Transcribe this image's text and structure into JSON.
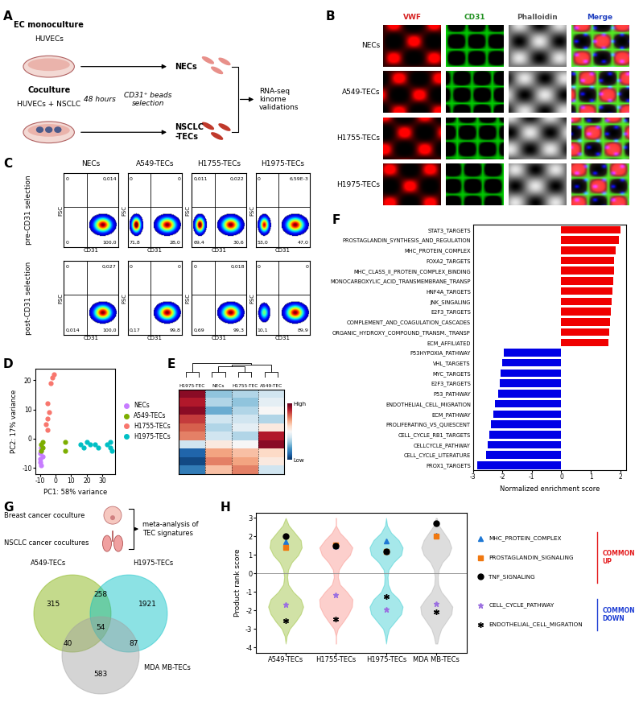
{
  "panel_A": {
    "label": "A",
    "monoculture_title": "EC monoculture",
    "monoculture_cells": "HUVECs",
    "time": "48 hours",
    "selection": "CD31⁺ beads\nselection",
    "mono_output": "NECs",
    "coculture_title": "Coculture",
    "coculture_cells": "HUVECs + NSCLC",
    "co_output": "NSCLC\n-TECs",
    "downstream": "RNA-seq\nkinome\nvalidations"
  },
  "panel_B": {
    "label": "B",
    "stains": [
      "VWF",
      "CD31",
      "Phalloidin",
      "Merge"
    ],
    "conditions": [
      "NECs",
      "A549-TECs",
      "H1755-TECs",
      "H1975-TECs"
    ]
  },
  "panel_C": {
    "label": "C",
    "x_label": "CD31",
    "y_label": "FSC",
    "conditions": [
      "NECs",
      "A549-TECs",
      "H1755-TECs",
      "H1975-TECs"
    ],
    "rows": [
      {
        "name": "pre-CD31 selection",
        "quadrants": [
          {
            "UL": "0",
            "UR": "0,014",
            "LL": "0",
            "LR": "100,0"
          },
          {
            "UL": "0",
            "UR": "0",
            "LL": "71,8",
            "LR": "28,0"
          },
          {
            "UL": "0,011",
            "UR": "0,022",
            "LL": "69,4",
            "LR": "30,6"
          },
          {
            "UL": "0",
            "UR": "6,59E-3",
            "LL": "53,0",
            "LR": "47,0"
          }
        ]
      },
      {
        "name": "post-CD31 selection",
        "quadrants": [
          {
            "UL": "0",
            "UR": "0,027",
            "LL": "0,014",
            "LR": "100,0"
          },
          {
            "UL": "0",
            "UR": "0",
            "LL": "0,17",
            "LR": "99,8"
          },
          {
            "UL": "0",
            "UR": "0,018",
            "LL": "0,69",
            "LR": "99,3"
          },
          {
            "UL": "0",
            "UR": "0",
            "LL": "10,1",
            "LR": "89,9"
          }
        ]
      }
    ]
  },
  "panel_G": {
    "label": "G",
    "sources": [
      "Breast cancer coculture",
      "NSCLC cancer cocultures"
    ],
    "analysis": "meta-analysis of\nTEC signatures",
    "sets": [
      {
        "name": "A549-TECs",
        "color": "#7cae00"
      },
      {
        "name": "H1975-TECs",
        "color": "#00bfc4"
      },
      {
        "name": "MDA MB-TECs",
        "color": "#a0a0a0"
      }
    ],
    "regions": [
      {
        "members": [
          "A549-TECs"
        ],
        "value": 315
      },
      {
        "members": [
          "H1975-TECs"
        ],
        "value": 1921
      },
      {
        "members": [
          "MDA MB-TECs"
        ],
        "value": 583
      },
      {
        "members": [
          "A549-TECs",
          "H1975-TECs"
        ],
        "value": 258
      },
      {
        "members": [
          "A549-TECs",
          "MDA MB-TECs"
        ],
        "value": 40
      },
      {
        "members": [
          "H1975-TECs",
          "MDA MB-TECs"
        ],
        "value": 87
      },
      {
        "members": [
          "A549-TECs",
          "H1975-TECs",
          "MDA MB-TECs"
        ],
        "value": 54
      }
    ]
  },
  "chart_data": [
    {
      "type": "scatter",
      "label": "D",
      "x_label": "PC1: 58% variance",
      "y_label": "PC2: 17% variance",
      "xlim": [
        -13,
        38
      ],
      "ylim": [
        -12,
        24
      ],
      "xticks": [
        -10,
        0,
        10,
        20,
        30
      ],
      "yticks": [
        -10,
        0,
        10,
        20
      ],
      "legend": "right",
      "series": [
        {
          "name": "NECs",
          "color": "#c77cff",
          "x": [
            -10,
            -9,
            -10,
            -9,
            -10,
            -8,
            -9
          ],
          "y": [
            -5,
            -3,
            -8,
            -9,
            -7,
            -6,
            -4
          ]
        },
        {
          "name": "A549-TECs",
          "color": "#7cae00",
          "x": [
            -9,
            -8,
            -9,
            -8,
            6,
            6
          ],
          "y": [
            -2,
            -3,
            -4,
            -1,
            -1,
            -4
          ]
        },
        {
          "name": "H1755-TECs",
          "color": "#f8766d",
          "x": [
            -5,
            -4,
            -5,
            -6,
            -5,
            -3,
            -2,
            -1
          ],
          "y": [
            7,
            9,
            12,
            5,
            3,
            19,
            21,
            22
          ]
        },
        {
          "name": "H1975-TECs",
          "color": "#00bfc4",
          "x": [
            16,
            18,
            20,
            22,
            25,
            27,
            33,
            35,
            36,
            35
          ],
          "y": [
            -2,
            -3,
            -1,
            -2,
            -2,
            -3,
            -2,
            -3,
            -4,
            -1
          ]
        }
      ]
    },
    {
      "type": "heatmap",
      "label": "E",
      "columns": [
        "H1975-TEC",
        "NECs",
        "H1755-TEC",
        "A549-TEC"
      ],
      "cells": [
        [
          0.9,
          -0.4,
          -0.3,
          -0.2
        ],
        [
          0.8,
          -0.3,
          -0.4,
          -0.1
        ],
        [
          0.9,
          -0.5,
          -0.3,
          0.0
        ],
        [
          0.7,
          -0.2,
          -0.2,
          -0.3
        ],
        [
          0.6,
          -0.3,
          -0.1,
          0.1
        ],
        [
          0.5,
          -0.2,
          -0.3,
          0.8
        ],
        [
          -0.2,
          0.1,
          0.0,
          0.9
        ],
        [
          -0.8,
          0.4,
          0.3,
          0.2
        ],
        [
          -0.9,
          0.5,
          0.4,
          0.1
        ],
        [
          -0.7,
          0.3,
          0.5,
          -0.2
        ]
      ],
      "colorbar_range": [
        -1,
        1
      ],
      "colorbar_ticks": [
        {
          "value": 1,
          "label": "High"
        },
        {
          "value": -1,
          "label": "Low"
        }
      ]
    },
    {
      "type": "bar",
      "label": "F",
      "orientation": "horizontal",
      "x_label": "Normalized enrichment score",
      "categories": [
        "STAT3_TARGETS",
        "PROSTAGLANDIN_SYNTHESIS_AND_REGULATION",
        "MHC_PROTEIN_COMPLEX",
        "FOXA2_TARGETS",
        "MHC_CLASS_II_PROTEIN_COMPLEX_BINDING",
        "MONOCARBOXYLIC_ACID_TRANSMEMBRANE_TRANSP",
        "HNF4A_TARGETS",
        "JNK_SINGALING",
        "E2F3_TARGETS",
        "COMPLEMENT_AND_COAGULATION_CASCADES",
        "ORGANIC_HYDROXY_COMPOUND_TRANSM._TRANSP",
        "ECM_AFFILIATED",
        "P53HYPOXIA_PATHWAY",
        "VHL_TARGETS",
        "MYC_TARGETS",
        "E2F3_TARGETS",
        "P53_PATHWAY",
        "ENDOTHELIAL_CELL_MIGRATION",
        "ECM_PATHWAY",
        "PROLIFERATING_VS_QUIESCENT",
        "CELL_CYCLE_RB1_TARGETS",
        "CELLCYCLE_PATHWAY",
        "CELL_CYCLE_LITERATURE",
        "PROX1_TARGETS"
      ],
      "values": [
        2.0,
        1.95,
        1.85,
        1.8,
        1.78,
        1.75,
        1.72,
        1.7,
        1.68,
        1.65,
        1.62,
        1.6,
        -1.95,
        -2.0,
        -2.05,
        -2.1,
        -2.15,
        -2.25,
        -2.3,
        -2.4,
        -2.45,
        -2.5,
        -2.55,
        -2.85
      ],
      "colors": [
        "#f00000",
        "#f00000",
        "#f00000",
        "#f00000",
        "#f00000",
        "#f00000",
        "#f00000",
        "#f00000",
        "#f00000",
        "#f00000",
        "#f00000",
        "#f00000",
        "#0000e6",
        "#0000e6",
        "#0000e6",
        "#0000e6",
        "#0000e6",
        "#0000e6",
        "#0000e6",
        "#0000e6",
        "#0000e6",
        "#0000e6",
        "#0000e6",
        "#0000e6"
      ],
      "xlim": [
        -3,
        2.2
      ],
      "xticks": [
        -3,
        -2,
        -1,
        0,
        1,
        2
      ]
    },
    {
      "type": "violin",
      "label": "H",
      "y_label": "Product rank score",
      "categories": [
        "A549-TECs",
        "H1755-TECs",
        "H1975-TECs",
        "MDA MB-TECs"
      ],
      "colors": [
        "#7cae00",
        "#f8766d",
        "#00bfc4",
        "#a0a0a0"
      ],
      "ylim": [
        -4.3,
        3.3
      ],
      "yticks": [
        3,
        2,
        1,
        0,
        -1,
        -2,
        -3,
        -4
      ],
      "violin_y": [
        -3.8,
        -3.4,
        -3.0,
        -2.6,
        -2.2,
        -1.8,
        -1.4,
        -1.0,
        -0.6,
        -0.2,
        0.2,
        0.6,
        1.0,
        1.4,
        1.8,
        2.2,
        2.6,
        3.0
      ],
      "density": [
        [
          0,
          0.02,
          0.08,
          0.2,
          0.3,
          0.35,
          0.3,
          0.15,
          0.05,
          0.03,
          0.05,
          0.12,
          0.25,
          0.32,
          0.3,
          0.18,
          0.06,
          0
        ],
        [
          0,
          0,
          0.04,
          0.15,
          0.25,
          0.32,
          0.33,
          0.22,
          0.08,
          0.04,
          0.06,
          0.15,
          0.28,
          0.33,
          0.22,
          0.08,
          0,
          0
        ],
        [
          0,
          0.02,
          0.06,
          0.18,
          0.3,
          0.33,
          0.25,
          0.1,
          0.04,
          0.03,
          0.05,
          0.15,
          0.3,
          0.33,
          0.25,
          0.1,
          0.02,
          0
        ],
        [
          0.02,
          0.05,
          0.1,
          0.2,
          0.3,
          0.32,
          0.22,
          0.1,
          0.04,
          0.03,
          0.05,
          0.12,
          0.25,
          0.3,
          0.25,
          0.15,
          0.05,
          0.01
        ]
      ],
      "legend": "right",
      "series": [
        {
          "name": "MHC_PROTEIN_COMPLEX",
          "color": "#1f78d4",
          "marker": "triangle",
          "values": [
            1.7,
            1.5,
            1.75,
            2.05
          ]
        },
        {
          "name": "PROSTAGLANDIN_SIGNALING",
          "color": "#f07810",
          "marker": "square",
          "values": [
            1.4,
            1.55,
            1.2,
            2.0
          ]
        },
        {
          "name": "TNF_SIGNALING",
          "color": "#000000",
          "marker": "circle",
          "values": [
            2.0,
            1.5,
            1.2,
            2.7
          ]
        },
        {
          "name": "CELL_CYCLE_PATHWAY",
          "color": "#9b6fe0",
          "marker": "star",
          "values": [
            -1.7,
            -1.15,
            -1.95,
            -1.65
          ]
        },
        {
          "name": "ENDOTHELIAL_CELL_MIGRATION",
          "color": "#000000",
          "marker": "asterisk",
          "values": [
            -2.55,
            -2.45,
            -1.25,
            -2.1
          ]
        }
      ],
      "groups": [
        {
          "name": "COMMON\nUP",
          "color": "#e41a1c",
          "members": [
            "MHC_PROTEIN_COMPLEX",
            "PROSTAGLANDIN_SIGNALING",
            "TNF_SIGNALING"
          ]
        },
        {
          "name": "COMMON\nDOWN",
          "color": "#1f3fd4",
          "members": [
            "CELL_CYCLE_PATHWAY",
            "ENDOTHELIAL_CELL_MIGRATION"
          ]
        }
      ]
    }
  ]
}
